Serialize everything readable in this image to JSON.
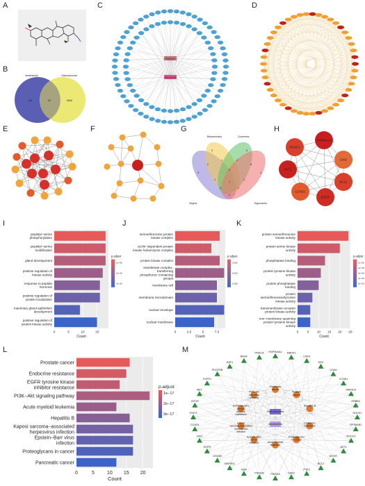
{
  "letters": [
    "A",
    "B",
    "C",
    "D",
    "E",
    "F",
    "G",
    "H",
    "I",
    "J",
    "K",
    "L",
    "M"
  ],
  "venn_b": {
    "left_name": "Veratramine",
    "right_name": "Osteosarcoma",
    "left_only": "108",
    "overlap": "62",
    "right_only": "5906",
    "left_color": "#5b5fb3",
    "right_color": "#e8e55a"
  },
  "network_c": {
    "center_top": "Veratramine",
    "center_bottom": "Osteosarcoma",
    "outer_label": "gene"
  },
  "network_h": {
    "nodes": [
      "HSP90AA1",
      "PIK3CA",
      "JAK2",
      "BCL2",
      "EGFR",
      "CCND1",
      "AKT1"
    ]
  },
  "venn_g": {
    "set_names": [
      "Degree",
      "Betweenness",
      "Closeness",
      "Eigenvector"
    ],
    "regions": [
      "3",
      "2",
      "5",
      "4",
      "2",
      "1",
      "3",
      "6",
      "1",
      "2",
      "1",
      "3",
      "1",
      "7",
      "2"
    ]
  },
  "network_m": {
    "center": "Osteosarcoma",
    "drug": "Veratramine",
    "pathways": [
      "Pancreatic cancer",
      "Prostate cancer",
      "Hepatitis B",
      "Endocrine resistance",
      "Proteoglycans in cancer",
      "Acute myeloid leukemia",
      "Epstein–Barr virus infection",
      "Kaposi sarcoma-associated herpesvirus infection",
      "EGFR tyrosine kinase inhibitor resistance",
      "PI3K–Akt signaling pathway"
    ],
    "genes": [
      "HSP90AA1",
      "MAPK1",
      "CDK4",
      "SRC",
      "CDK6",
      "CCNE1",
      "MAPK14",
      "ERBB2",
      "ROCK1",
      "RPS6KB1",
      "ROCK2",
      "AKT1",
      "MTOR",
      "BCL2",
      "PTK2",
      "CDK2",
      "PIK3CA",
      "PIK3CB",
      "KDR",
      "MAP2K1",
      "GSK3B",
      "EGFR",
      "JAK2",
      "CCND1",
      "STAT3",
      "IGF1R",
      "MET",
      "FGFR1",
      "PDGFRB",
      "RAF1",
      "BRAF",
      "PRKCA"
    ]
  },
  "chart_data": [
    {
      "panel": "I",
      "type": "bar",
      "categories": [
        "peptidyl−serine phosphorylation",
        "peptidyl−serine modification",
        "gland development",
        "positive regulation of kinase activity",
        "response to peptide hormone",
        "positive regulation of protein localization",
        "mammary gland epithelium development",
        "positive regulation of protein kinase activity"
      ],
      "values": [
        18,
        18,
        18,
        17,
        16,
        16,
        9,
        15
      ],
      "xlabel": "Count",
      "xlim": [
        0,
        19
      ],
      "xticks": [
        0,
        5,
        10,
        15
      ],
      "legend_title": "p.adjust",
      "legend_ticks": [
        "1e−06",
        "2e−06",
        "3e−06"
      ]
    },
    {
      "panel": "J",
      "type": "bar",
      "categories": [
        "serine/threonine protein kinase complex",
        "cyclin−dependent protein kinase holoenzyme complex",
        "protein kinase complex",
        "transferase complex, transferring phosphorus−containing groups",
        "membrane raft",
        "membrane microdomain",
        "nuclear envelope",
        "nuclear membrane"
      ],
      "values": [
        8,
        6.5,
        8,
        8.8,
        7.5,
        7.5,
        8.8,
        7
      ],
      "xlabel": "Count",
      "xlim": [
        0,
        9
      ],
      "xticks": [
        0.0,
        2.5,
        5.0,
        7.5
      ],
      "legend_title": "p.adjust",
      "legend_ticks": [
        "0.002",
        "0.004",
        "0.006"
      ]
    },
    {
      "panel": "K",
      "type": "bar",
      "categories": [
        "protein serine/threonine kinase activity",
        "protein serine kinase activity",
        "phosphatase binding",
        "protein tyrosine kinase activity",
        "protein phosphatase binding",
        "protein serine/threonine/tyrosine kinase activity",
        "transmembrane receptor protein kinase activity",
        "non−membrane spanning protein tyrosine kinase activity"
      ],
      "values": [
        24,
        20,
        13,
        11,
        10,
        7,
        6,
        6
      ],
      "xlabel": "Count",
      "xlim": [
        0,
        25
      ],
      "xticks": [
        0,
        5,
        10,
        15,
        20,
        25
      ],
      "legend_title": "p.adjust",
      "legend_ticks": [
        "1e−05",
        "2e−05",
        "3e−05",
        "4e−05",
        "5e−05"
      ]
    },
    {
      "panel": "L",
      "type": "bar",
      "categories": [
        "Prostate cancer",
        "Endocrine resistance",
        "EGFR tyrosine kinase inhibitor resistance",
        "PI3K−Akt signaling pathway",
        "Acute myeloid leukemia",
        "Hepatitis B",
        "Kaposi sarcoma−associated herpesvirus infection",
        "Epstein−Barr virus infection",
        "Proteoglycans in cancer",
        "Pancreatic cancer"
      ],
      "values": [
        16,
        15,
        13,
        22,
        12,
        16,
        17,
        17,
        17,
        12
      ],
      "xlabel": "Count",
      "xlim": [
        0,
        23
      ],
      "xticks": [
        0,
        5,
        10,
        15,
        20
      ],
      "legend_title": "p.adjust",
      "legend_ticks": [
        "1e−17",
        "2e−17",
        "3e−17"
      ]
    }
  ]
}
